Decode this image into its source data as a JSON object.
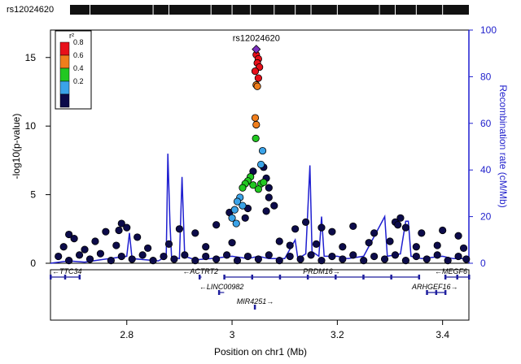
{
  "snp_track": {
    "label": "rs12024620",
    "snp_x_mb": [
      2.69,
      2.73,
      2.85,
      2.88,
      2.96,
      3.0,
      3.035,
      3.08,
      3.12,
      3.15,
      3.2,
      3.28,
      3.31,
      3.35,
      3.4
    ]
  },
  "chart_data": {
    "type": "scatter",
    "subtype": "regional_association_plot",
    "title": "",
    "xlabel": "Position on chr1 (Mb)",
    "ylabel": "-log10(p-value)",
    "ylabel_right": "Recombination rate (cM/Mb)",
    "xlim": [
      2.655,
      3.45
    ],
    "ylim": [
      0,
      17
    ],
    "ylim_right": [
      0,
      100
    ],
    "x_ticks": [
      2.8,
      3.0,
      3.2,
      3.4
    ],
    "x_tick_labels": [
      "2.8",
      "3",
      "3.2",
      "3.4"
    ],
    "y_ticks": [
      0,
      5,
      10,
      15
    ],
    "y_tick_labels": [
      "0",
      "5",
      "10",
      "15"
    ],
    "y_right_ticks": [
      0,
      20,
      40,
      60,
      80,
      100
    ],
    "y_right_tick_labels": [
      "0",
      "20",
      "40",
      "60",
      "80",
      "100"
    ],
    "lead_snp": {
      "label": "rs12024620",
      "x": 3.046,
      "y": 15.6,
      "color": "#7b2fbe"
    },
    "legend": {
      "title": "r²",
      "position": "top-left",
      "items": [
        {
          "label": "0.8",
          "color": "#e8101a"
        },
        {
          "label": "0.6",
          "color": "#f07e1c"
        },
        {
          "label": "0.4",
          "color": "#21c821"
        },
        {
          "label": "0.2",
          "color": "#3ba3e8"
        },
        {
          "label": "",
          "color": "#0c0b4a"
        }
      ]
    },
    "recombination_color": "#1f1fd0",
    "recombination": [
      [
        2.655,
        0
      ],
      [
        2.69,
        1
      ],
      [
        2.72,
        0.5
      ],
      [
        2.75,
        1.5
      ],
      [
        2.8,
        3
      ],
      [
        2.805,
        13
      ],
      [
        2.81,
        2
      ],
      [
        2.86,
        1
      ],
      [
        2.875,
        3
      ],
      [
        2.878,
        47
      ],
      [
        2.882,
        17
      ],
      [
        2.885,
        3
      ],
      [
        2.9,
        2
      ],
      [
        2.905,
        37
      ],
      [
        2.91,
        3
      ],
      [
        2.93,
        1.5
      ],
      [
        2.96,
        2
      ],
      [
        3.0,
        3
      ],
      [
        3.03,
        2
      ],
      [
        3.05,
        3
      ],
      [
        3.07,
        2
      ],
      [
        3.1,
        2
      ],
      [
        3.12,
        10
      ],
      [
        3.125,
        2
      ],
      [
        3.14,
        4
      ],
      [
        3.148,
        42
      ],
      [
        3.152,
        5
      ],
      [
        3.165,
        3
      ],
      [
        3.17,
        20
      ],
      [
        3.175,
        3
      ],
      [
        3.2,
        3
      ],
      [
        3.22,
        2
      ],
      [
        3.25,
        3
      ],
      [
        3.29,
        20
      ],
      [
        3.295,
        3
      ],
      [
        3.32,
        4
      ],
      [
        3.33,
        18
      ],
      [
        3.335,
        18
      ],
      [
        3.34,
        3
      ],
      [
        3.36,
        2
      ],
      [
        3.4,
        3
      ],
      [
        3.42,
        2
      ],
      [
        3.45,
        2
      ]
    ],
    "series": [
      {
        "r2": "0.8-1.0",
        "color": "#e8101a",
        "points": [
          [
            3.046,
            15.2
          ],
          [
            3.05,
            14.9
          ],
          [
            3.048,
            14.6
          ],
          [
            3.052,
            14.3
          ],
          [
            3.044,
            14.0
          ],
          [
            3.05,
            13.5
          ]
        ]
      },
      {
        "r2": "0.6-0.8",
        "color": "#f07e1c",
        "points": [
          [
            3.046,
            13.0
          ],
          [
            3.048,
            12.9
          ],
          [
            3.044,
            10.6
          ],
          [
            3.046,
            10.1
          ]
        ]
      },
      {
        "r2": "0.4-0.6",
        "color": "#21c821",
        "points": [
          [
            3.045,
            9.1
          ],
          [
            3.035,
            6.3
          ],
          [
            3.03,
            6.0
          ],
          [
            3.025,
            5.8
          ],
          [
            3.02,
            5.5
          ],
          [
            3.04,
            5.7
          ],
          [
            3.055,
            5.8
          ],
          [
            3.06,
            5.9
          ],
          [
            3.05,
            5.4
          ]
        ]
      },
      {
        "r2": "0.2-0.4",
        "color": "#3ba3e8",
        "points": [
          [
            3.058,
            8.2
          ],
          [
            3.055,
            7.2
          ],
          [
            3.015,
            4.8
          ],
          [
            3.01,
            4.5
          ],
          [
            3.02,
            4.2
          ],
          [
            3.005,
            3.9
          ],
          [
            3.0,
            3.3
          ],
          [
            3.008,
            2.9
          ]
        ]
      },
      {
        "r2": "0.0-0.2",
        "color": "#0c0b4a",
        "points": [
          [
            3.06,
            7.0
          ],
          [
            3.065,
            6.2
          ],
          [
            3.07,
            5.5
          ],
          [
            3.04,
            6.7
          ],
          [
            3.03,
            4.0
          ],
          [
            3.07,
            4.8
          ],
          [
            3.08,
            4.2
          ],
          [
            3.065,
            3.8
          ],
          [
            2.995,
            3.7
          ],
          [
            3.025,
            3.3
          ],
          [
            2.69,
            2.1
          ],
          [
            2.7,
            1.8
          ],
          [
            2.76,
            2.3
          ],
          [
            2.79,
            2.9
          ],
          [
            2.8,
            2.6
          ],
          [
            2.785,
            2.4
          ],
          [
            2.74,
            1.6
          ],
          [
            2.82,
            1.9
          ],
          [
            2.9,
            2.5
          ],
          [
            2.93,
            2.2
          ],
          [
            2.97,
            2.8
          ],
          [
            3.12,
            2.5
          ],
          [
            3.14,
            3.0
          ],
          [
            3.17,
            2.6
          ],
          [
            3.19,
            2.3
          ],
          [
            3.23,
            2.7
          ],
          [
            3.27,
            2.2
          ],
          [
            3.31,
            3.0
          ],
          [
            3.32,
            3.3
          ],
          [
            3.315,
            2.8
          ],
          [
            3.33,
            2.6
          ],
          [
            3.36,
            2.2
          ],
          [
            3.4,
            2.4
          ],
          [
            3.43,
            2.0
          ],
          [
            2.68,
            1.2
          ],
          [
            2.72,
            1.0
          ],
          [
            2.78,
            1.3
          ],
          [
            2.84,
            1.1
          ],
          [
            2.88,
            1.4
          ],
          [
            2.95,
            1.2
          ],
          [
            3.0,
            1.5
          ],
          [
            3.09,
            1.6
          ],
          [
            3.11,
            1.3
          ],
          [
            3.16,
            1.4
          ],
          [
            3.21,
            1.2
          ],
          [
            3.26,
            1.5
          ],
          [
            3.3,
            1.6
          ],
          [
            3.35,
            1.2
          ],
          [
            3.39,
            1.3
          ],
          [
            3.44,
            1.1
          ],
          [
            2.67,
            0.5
          ],
          [
            2.69,
            0.2
          ],
          [
            2.71,
            0.6
          ],
          [
            2.73,
            0.3
          ],
          [
            2.75,
            0.7
          ],
          [
            2.77,
            0.2
          ],
          [
            2.79,
            0.5
          ],
          [
            2.81,
            0.3
          ],
          [
            2.83,
            0.6
          ],
          [
            2.85,
            0.2
          ],
          [
            2.87,
            0.5
          ],
          [
            2.89,
            0.3
          ],
          [
            2.91,
            0.6
          ],
          [
            2.93,
            0.2
          ],
          [
            2.95,
            0.5
          ],
          [
            2.97,
            0.3
          ],
          [
            2.99,
            0.6
          ],
          [
            3.01,
            0.2
          ],
          [
            3.03,
            0.5
          ],
          [
            3.05,
            0.3
          ],
          [
            3.07,
            0.6
          ],
          [
            3.09,
            0.2
          ],
          [
            3.11,
            0.5
          ],
          [
            3.13,
            0.3
          ],
          [
            3.15,
            0.6
          ],
          [
            3.17,
            0.2
          ],
          [
            3.19,
            0.5
          ],
          [
            3.21,
            0.3
          ],
          [
            3.23,
            0.6
          ],
          [
            3.25,
            0.2
          ],
          [
            3.27,
            0.5
          ],
          [
            3.29,
            0.3
          ],
          [
            3.31,
            0.6
          ],
          [
            3.33,
            0.2
          ],
          [
            3.35,
            0.5
          ],
          [
            3.37,
            0.3
          ],
          [
            3.39,
            0.6
          ],
          [
            3.41,
            0.2
          ],
          [
            3.43,
            0.5
          ],
          [
            3.445,
            0.3
          ]
        ]
      }
    ],
    "genes": [
      {
        "name": "TTC34",
        "start": 2.655,
        "end": 2.71,
        "strand": "-",
        "row": 0
      },
      {
        "name": "ACTRT2",
        "start": 2.938,
        "end": 2.942,
        "strand": "-",
        "row": 0
      },
      {
        "name": "PRDM16",
        "start": 2.985,
        "end": 3.355,
        "strand": "+",
        "row": 0
      },
      {
        "name": "MEGF6",
        "start": 3.405,
        "end": 3.45,
        "strand": "-",
        "row": 0
      },
      {
        "name": "LINC00982",
        "start": 2.975,
        "end": 2.985,
        "strand": "-",
        "row": 1
      },
      {
        "name": "ARHGEF16",
        "start": 3.37,
        "end": 3.405,
        "strand": "+",
        "row": 1
      },
      {
        "name": "MIR4251",
        "start": 3.043,
        "end": 3.045,
        "strand": "+",
        "row": 2
      }
    ]
  }
}
